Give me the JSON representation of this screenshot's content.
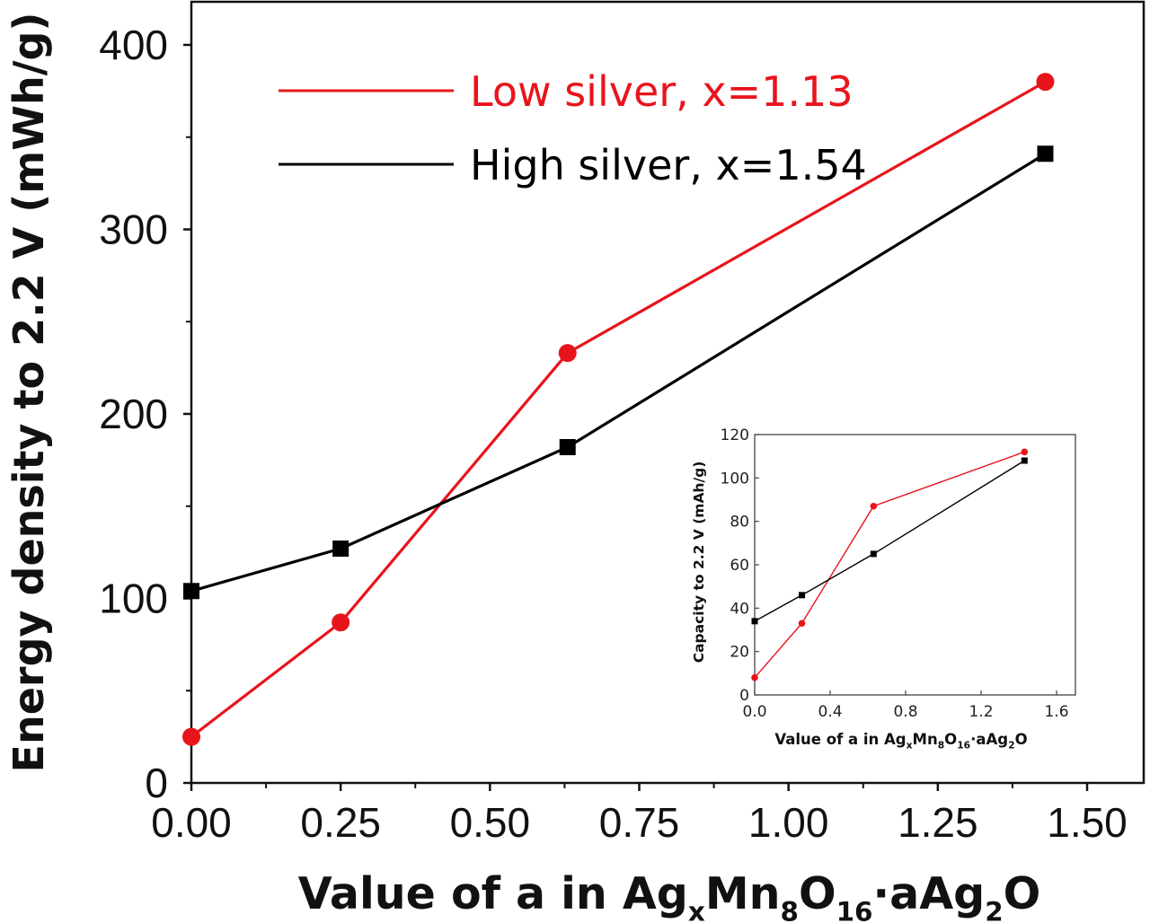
{
  "chart_data": [
    {
      "type": "line",
      "title": "",
      "xlabel": {
        "parts": [
          {
            "text": "Value of a in Ag"
          },
          {
            "text": "x",
            "sub": true
          },
          {
            "text": "Mn"
          },
          {
            "text": "8",
            "sub": true
          },
          {
            "text": "O"
          },
          {
            "text": "16",
            "sub": true
          },
          {
            "text": "·aAg"
          },
          {
            "text": "2",
            "sub": true
          },
          {
            "text": "O"
          }
        ]
      },
      "ylabel": "Energy density to 2.2 V (mWh/g)",
      "xlim": [
        0,
        1.5
      ],
      "ylim": [
        0,
        400
      ],
      "x_ticks": [
        "0.00",
        "0.25",
        "0.50",
        "0.75",
        "1.00",
        "1.25",
        "1.50"
      ],
      "y_ticks": [
        "0",
        "100",
        "200",
        "300",
        "400"
      ],
      "legend_position": "top-left",
      "series": [
        {
          "name": "Low silver, x=1.13",
          "color": "#e8141c",
          "marker": "circle",
          "x": [
            0.0,
            0.25,
            0.63,
            1.43
          ],
          "y": [
            25,
            87,
            233,
            380
          ]
        },
        {
          "name": "High silver, x=1.54",
          "color": "#000000",
          "marker": "square",
          "x": [
            0.0,
            0.25,
            0.63,
            1.43
          ],
          "y": [
            104,
            127,
            182,
            341
          ]
        }
      ]
    },
    {
      "type": "line",
      "title": "",
      "xlabel": {
        "parts": [
          {
            "text": "Value of a in Ag"
          },
          {
            "text": "x",
            "sub": true
          },
          {
            "text": "Mn"
          },
          {
            "text": "8",
            "sub": true
          },
          {
            "text": "O"
          },
          {
            "text": "16",
            "sub": true
          },
          {
            "text": "·aAg"
          },
          {
            "text": "2",
            "sub": true
          },
          {
            "text": "O"
          }
        ]
      },
      "ylabel": "Capacity to 2.2 V (mAh/g)",
      "xlim": [
        0,
        1.7
      ],
      "ylim": [
        0,
        120
      ],
      "x_ticks": [
        "0.0",
        "0.4",
        "0.8",
        "1.2",
        "1.6"
      ],
      "y_ticks": [
        "0",
        "20",
        "40",
        "60",
        "80",
        "100",
        "120"
      ],
      "series": [
        {
          "color": "#e8141c",
          "marker": "circle",
          "x": [
            0.0,
            0.25,
            0.63,
            1.43
          ],
          "y": [
            8,
            33,
            87,
            112
          ]
        },
        {
          "color": "#000000",
          "marker": "square",
          "x": [
            0.0,
            0.25,
            0.63,
            1.43
          ],
          "y": [
            34,
            46,
            65,
            108
          ]
        }
      ]
    }
  ]
}
